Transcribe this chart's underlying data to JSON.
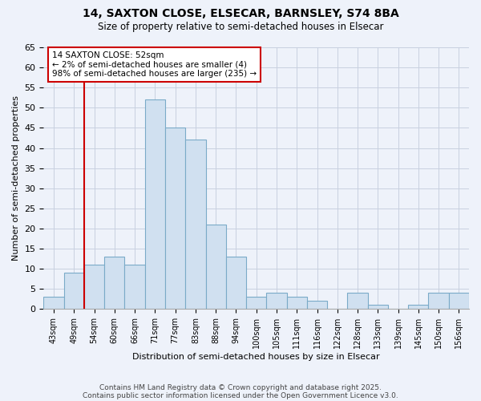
{
  "title1": "14, SAXTON CLOSE, ELSECAR, BARNSLEY, S74 8BA",
  "title2": "Size of property relative to semi-detached houses in Elsecar",
  "xlabel": "Distribution of semi-detached houses by size in Elsecar",
  "ylabel": "Number of semi-detached properties",
  "bar_labels": [
    "43sqm",
    "49sqm",
    "54sqm",
    "60sqm",
    "66sqm",
    "71sqm",
    "77sqm",
    "83sqm",
    "88sqm",
    "94sqm",
    "100sqm",
    "105sqm",
    "111sqm",
    "116sqm",
    "122sqm",
    "128sqm",
    "133sqm",
    "139sqm",
    "145sqm",
    "150sqm",
    "156sqm"
  ],
  "bar_values": [
    3,
    9,
    11,
    13,
    11,
    52,
    45,
    42,
    21,
    13,
    3,
    4,
    3,
    2,
    0,
    4,
    1,
    0,
    1,
    4,
    4
  ],
  "bar_color": "#d0e0f0",
  "bar_edge_color": "#7aaac8",
  "annotation_title": "14 SAXTON CLOSE: 52sqm",
  "annotation_line1": "← 2% of semi-detached houses are smaller (4)",
  "annotation_line2": "98% of semi-detached houses are larger (235) →",
  "red_line_color": "#cc0000",
  "annotation_box_color": "#ffffff",
  "annotation_box_edge": "#cc0000",
  "grid_color": "#c8d0e0",
  "background_color": "#eef2fa",
  "ylim": [
    0,
    65
  ],
  "yticks": [
    0,
    5,
    10,
    15,
    20,
    25,
    30,
    35,
    40,
    45,
    50,
    55,
    60,
    65
  ],
  "red_line_bar_index": 2,
  "footnote1": "Contains HM Land Registry data © Crown copyright and database right 2025.",
  "footnote2": "Contains public sector information licensed under the Open Government Licence v3.0."
}
